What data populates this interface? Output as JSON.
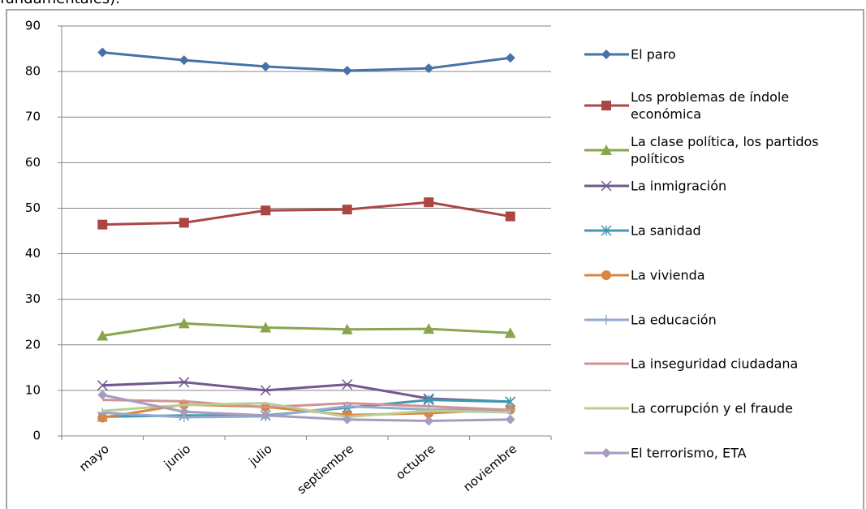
{
  "caption": "fundamentales).",
  "chart_data": {
    "type": "line",
    "categories": [
      "mayo",
      "junio",
      "julio",
      "septiembre",
      "octubre",
      "noviembre"
    ],
    "ylim": [
      0,
      90
    ],
    "yticks": [
      0,
      10,
      20,
      30,
      40,
      50,
      60,
      70,
      80,
      90
    ],
    "grid": true,
    "legend": "right",
    "series": [
      {
        "name": "El paro",
        "color": "#4572a7",
        "marker": "diamond",
        "values": [
          84.2,
          82.5,
          81.1,
          80.2,
          80.7,
          83.0
        ]
      },
      {
        "name": "Los problemas de índole económica",
        "color": "#aa4643",
        "marker": "square",
        "values": [
          46.4,
          46.8,
          49.5,
          49.7,
          51.3,
          48.2
        ]
      },
      {
        "name": "La clase política, los partidos políticos",
        "color": "#89a54e",
        "marker": "triangle",
        "values": [
          22.0,
          24.7,
          23.8,
          23.4,
          23.5,
          22.6
        ]
      },
      {
        "name": "La inmigración",
        "color": "#71588f",
        "marker": "x",
        "values": [
          11.1,
          11.8,
          10.0,
          11.3,
          8.2,
          7.5
        ]
      },
      {
        "name": "La sanidad",
        "color": "#4198af",
        "marker": "star",
        "values": [
          4.2,
          4.5,
          4.5,
          6.2,
          7.9,
          7.5
        ]
      },
      {
        "name": "La vivienda",
        "color": "#db843d",
        "marker": "circle",
        "values": [
          4.0,
          6.9,
          6.4,
          4.6,
          5.0,
          5.8
        ]
      },
      {
        "name": "La educación",
        "color": "#93a9cf",
        "marker": "plus",
        "values": [
          5.1,
          4.1,
          4.3,
          6.5,
          5.8,
          5.7
        ]
      },
      {
        "name": "La inseguridad ciudadana",
        "color": "#d19392",
        "marker": "none",
        "values": [
          7.9,
          7.6,
          6.3,
          7.2,
          6.5,
          5.7
        ]
      },
      {
        "name": "La corrupción y el fraude",
        "color": "#b9cd96",
        "marker": "none",
        "values": [
          5.5,
          6.8,
          7.2,
          4.2,
          5.5,
          5.2
        ]
      },
      {
        "name": "El terrorismo, ETA",
        "color": "#a99bbd",
        "marker": "diamond",
        "values": [
          9.0,
          5.3,
          4.5,
          3.6,
          3.3,
          3.6
        ]
      }
    ]
  }
}
